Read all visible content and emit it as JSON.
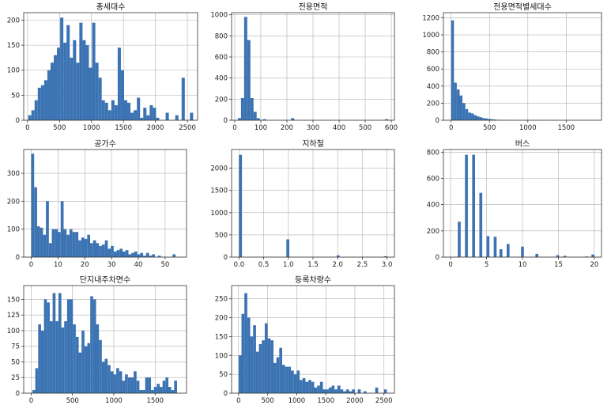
{
  "chart_data": [
    {
      "type": "bar",
      "title": "총세대수",
      "xlim": [
        -60,
        2660
      ],
      "ylim": [
        0,
        215
      ],
      "xticks": [
        0,
        500,
        1000,
        1500,
        2000,
        2500
      ],
      "yticks": [
        0,
        50,
        100,
        150,
        200
      ],
      "grid": true,
      "bins": [
        [
          10,
          60,
          10
        ],
        [
          60,
          110,
          20
        ],
        [
          110,
          160,
          40
        ],
        [
          160,
          210,
          65
        ],
        [
          210,
          260,
          70
        ],
        [
          260,
          310,
          80
        ],
        [
          310,
          360,
          100
        ],
        [
          360,
          410,
          115
        ],
        [
          410,
          460,
          130
        ],
        [
          460,
          510,
          145
        ],
        [
          510,
          560,
          205
        ],
        [
          560,
          610,
          155
        ],
        [
          610,
          660,
          190
        ],
        [
          660,
          710,
          125
        ],
        [
          710,
          760,
          160
        ],
        [
          760,
          810,
          115
        ],
        [
          810,
          860,
          195
        ],
        [
          860,
          910,
          160
        ],
        [
          910,
          960,
          150
        ],
        [
          960,
          1010,
          105
        ],
        [
          1010,
          1060,
          195
        ],
        [
          1060,
          1110,
          115
        ],
        [
          1110,
          1160,
          85
        ],
        [
          1160,
          1210,
          40
        ],
        [
          1210,
          1260,
          35
        ],
        [
          1260,
          1310,
          20
        ],
        [
          1310,
          1360,
          40
        ],
        [
          1360,
          1410,
          30
        ],
        [
          1410,
          1460,
          145
        ],
        [
          1460,
          1510,
          100
        ],
        [
          1510,
          1560,
          40
        ],
        [
          1560,
          1610,
          35
        ],
        [
          1610,
          1660,
          15
        ],
        [
          1660,
          1710,
          20
        ],
        [
          1710,
          1760,
          45
        ],
        [
          1760,
          1810,
          5
        ],
        [
          1810,
          1860,
          25
        ],
        [
          1860,
          1910,
          10
        ],
        [
          1910,
          1960,
          30
        ],
        [
          1960,
          2010,
          25
        ],
        [
          2010,
          2060,
          5
        ],
        [
          2160,
          2210,
          15
        ],
        [
          2310,
          2360,
          10
        ],
        [
          2410,
          2460,
          85
        ],
        [
          2540,
          2590,
          15
        ]
      ]
    },
    {
      "type": "bar",
      "title": "전용면적",
      "xlim": [
        -12,
        612
      ],
      "ylim": [
        0,
        1020
      ],
      "xticks": [
        0,
        100,
        200,
        300,
        400,
        500,
        600
      ],
      "yticks": [
        0,
        200,
        400,
        600,
        800,
        1000
      ],
      "grid": true,
      "bins": [
        [
          12,
          24,
          20
        ],
        [
          24,
          36,
          210
        ],
        [
          36,
          48,
          980
        ],
        [
          48,
          60,
          760
        ],
        [
          60,
          72,
          210
        ],
        [
          72,
          84,
          80
        ],
        [
          84,
          96,
          20
        ],
        [
          108,
          120,
          10
        ],
        [
          216,
          228,
          20
        ],
        [
          576,
          588,
          10
        ]
      ]
    },
    {
      "type": "bar",
      "title": "전용면적별세대수",
      "xlim": [
        -100,
        1960
      ],
      "ylim": [
        0,
        1260
      ],
      "xticks": [
        0,
        500,
        1000,
        1500
      ],
      "yticks": [
        0,
        200,
        400,
        600,
        800,
        1000,
        1200
      ],
      "grid": true,
      "bins": [
        [
          0,
          37,
          1170
        ],
        [
          37,
          74,
          440
        ],
        [
          74,
          111,
          360
        ],
        [
          111,
          148,
          290
        ],
        [
          148,
          185,
          200
        ],
        [
          185,
          222,
          130
        ],
        [
          222,
          259,
          90
        ],
        [
          259,
          296,
          80
        ],
        [
          296,
          333,
          60
        ],
        [
          333,
          370,
          45
        ],
        [
          370,
          407,
          35
        ],
        [
          407,
          444,
          25
        ],
        [
          444,
          481,
          20
        ],
        [
          481,
          518,
          15
        ],
        [
          518,
          555,
          12
        ],
        [
          555,
          592,
          8
        ],
        [
          592,
          629,
          5
        ],
        [
          629,
          666,
          4
        ],
        [
          666,
          703,
          3
        ],
        [
          703,
          740,
          2
        ],
        [
          740,
          777,
          2
        ],
        [
          777,
          814,
          1
        ]
      ]
    },
    {
      "type": "bar",
      "title": "공가수",
      "xlim": [
        -2.8,
        58
      ],
      "ylim": [
        0,
        385
      ],
      "xticks": [
        0,
        10,
        20,
        30,
        40,
        50
      ],
      "yticks": [
        0,
        100,
        200,
        300
      ],
      "grid": true,
      "bins": [
        [
          0,
          1.1,
          370
        ],
        [
          1.1,
          2.2,
          250
        ],
        [
          2.2,
          3.3,
          110
        ],
        [
          3.3,
          4.4,
          105
        ],
        [
          4.4,
          5.5,
          80
        ],
        [
          5.5,
          6.6,
          200
        ],
        [
          6.6,
          7.7,
          50
        ],
        [
          7.7,
          8.8,
          100
        ],
        [
          8.8,
          9.9,
          100
        ],
        [
          9.9,
          11,
          90
        ],
        [
          11,
          12.1,
          200
        ],
        [
          12.1,
          13.2,
          100
        ],
        [
          13.2,
          14.3,
          80
        ],
        [
          14.3,
          15.4,
          100
        ],
        [
          15.4,
          16.5,
          90
        ],
        [
          16.5,
          17.6,
          90
        ],
        [
          17.6,
          18.7,
          60
        ],
        [
          18.7,
          19.8,
          70
        ],
        [
          19.8,
          20.9,
          65
        ],
        [
          20.9,
          22,
          80
        ],
        [
          22,
          23.1,
          50
        ],
        [
          23.1,
          24.2,
          60
        ],
        [
          24.2,
          25.3,
          50
        ],
        [
          25.3,
          26.4,
          40
        ],
        [
          26.4,
          27.5,
          45
        ],
        [
          27.5,
          28.6,
          60
        ],
        [
          28.6,
          29.7,
          30
        ],
        [
          29.7,
          30.8,
          40
        ],
        [
          30.8,
          31.9,
          20
        ],
        [
          31.9,
          33,
          25
        ],
        [
          33,
          34.1,
          30
        ],
        [
          34.1,
          35.2,
          20
        ],
        [
          35.2,
          36.3,
          25
        ],
        [
          36.3,
          37.4,
          10
        ],
        [
          37.4,
          38.5,
          15
        ],
        [
          38.5,
          39.6,
          20
        ],
        [
          39.6,
          40.7,
          10
        ],
        [
          40.7,
          41.8,
          15
        ],
        [
          41.8,
          42.9,
          5
        ],
        [
          42.9,
          44,
          15
        ],
        [
          44,
          45.1,
          5
        ],
        [
          45.1,
          46.2,
          10
        ],
        [
          47.3,
          48.4,
          5
        ],
        [
          52.8,
          53.9,
          10
        ]
      ]
    },
    {
      "type": "bar",
      "title": "지하철",
      "xlim": [
        -0.15,
        3.15
      ],
      "ylim": [
        0,
        2420
      ],
      "xticks": [
        0.0,
        0.5,
        1.0,
        1.5,
        2.0,
        2.5,
        3.0
      ],
      "yticks": [
        0,
        500,
        1000,
        1500,
        2000
      ],
      "grid": true,
      "bins": [
        [
          0,
          0.06,
          2300
        ],
        [
          0.96,
          1.02,
          400
        ],
        [
          1.98,
          2.04,
          40
        ],
        [
          2.94,
          3.0,
          20
        ]
      ]
    },
    {
      "type": "bar",
      "title": "버스",
      "xlim": [
        -1,
        21
      ],
      "ylim": [
        0,
        820
      ],
      "xticks": [
        0,
        5,
        10,
        15,
        20
      ],
      "yticks": [
        0,
        200,
        400,
        600,
        800
      ],
      "grid": true,
      "bins": [
        [
          1,
          1.4,
          270
        ],
        [
          2,
          2.4,
          780
        ],
        [
          3,
          3.4,
          780
        ],
        [
          4,
          4.4,
          490
        ],
        [
          5,
          5.4,
          160
        ],
        [
          6,
          6.4,
          155
        ],
        [
          6.8,
          7.2,
          60
        ],
        [
          7.8,
          8.2,
          100
        ],
        [
          9.8,
          10.2,
          80
        ],
        [
          11.8,
          12.2,
          25
        ],
        [
          14.7,
          15.1,
          15
        ],
        [
          15.7,
          16.1,
          10
        ],
        [
          18.7,
          19.1,
          5
        ],
        [
          19.6,
          20,
          20
        ]
      ]
    },
    {
      "type": "bar",
      "title": "단지내주차면수",
      "xlim": [
        -90,
        1880
      ],
      "ylim": [
        0,
        172
      ],
      "xticks": [
        0,
        500,
        1000,
        1500
      ],
      "yticks": [
        0,
        25,
        50,
        75,
        100,
        125,
        150
      ],
      "grid": true,
      "bins": [
        [
          15,
          50,
          5
        ],
        [
          50,
          85,
          40
        ],
        [
          85,
          120,
          110
        ],
        [
          120,
          155,
          100
        ],
        [
          155,
          190,
          150
        ],
        [
          190,
          225,
          145
        ],
        [
          225,
          260,
          115
        ],
        [
          260,
          295,
          160
        ],
        [
          295,
          330,
          115
        ],
        [
          330,
          365,
          160
        ],
        [
          365,
          400,
          105
        ],
        [
          400,
          435,
          115
        ],
        [
          435,
          470,
          150
        ],
        [
          470,
          505,
          150
        ],
        [
          505,
          540,
          110
        ],
        [
          540,
          575,
          90
        ],
        [
          575,
          610,
          65
        ],
        [
          610,
          645,
          100
        ],
        [
          645,
          680,
          75
        ],
        [
          680,
          715,
          80
        ],
        [
          715,
          750,
          155
        ],
        [
          750,
          785,
          150
        ],
        [
          785,
          820,
          110
        ],
        [
          820,
          855,
          85
        ],
        [
          855,
          890,
          50
        ],
        [
          890,
          925,
          55
        ],
        [
          925,
          960,
          45
        ],
        [
          960,
          995,
          35
        ],
        [
          995,
          1030,
          30
        ],
        [
          1030,
          1065,
          40
        ],
        [
          1065,
          1100,
          35
        ],
        [
          1100,
          1135,
          20
        ],
        [
          1135,
          1170,
          30
        ],
        [
          1170,
          1205,
          25
        ],
        [
          1205,
          1240,
          25
        ],
        [
          1240,
          1275,
          35
        ],
        [
          1275,
          1310,
          20
        ],
        [
          1310,
          1345,
          5
        ],
        [
          1345,
          1380,
          5
        ],
        [
          1380,
          1415,
          25
        ],
        [
          1415,
          1450,
          25
        ],
        [
          1450,
          1485,
          5
        ],
        [
          1485,
          1520,
          10
        ],
        [
          1520,
          1555,
          15
        ],
        [
          1555,
          1590,
          10
        ],
        [
          1590,
          1625,
          20
        ],
        [
          1625,
          1660,
          25
        ],
        [
          1660,
          1695,
          10
        ],
        [
          1695,
          1730,
          5
        ],
        [
          1730,
          1765,
          20
        ]
      ]
    },
    {
      "type": "bar",
      "title": "등록차량수",
      "xlim": [
        -120,
        2680
      ],
      "ylim": [
        0,
        285
      ],
      "xticks": [
        0,
        500,
        1000,
        1500,
        2000,
        2500
      ],
      "yticks": [
        0,
        50,
        100,
        150,
        200,
        250
      ],
      "grid": true,
      "bins": [
        [
          0,
          50,
          100
        ],
        [
          50,
          100,
          210
        ],
        [
          100,
          150,
          265
        ],
        [
          150,
          200,
          200
        ],
        [
          200,
          250,
          150
        ],
        [
          250,
          300,
          180
        ],
        [
          300,
          350,
          110
        ],
        [
          350,
          400,
          130
        ],
        [
          400,
          450,
          140
        ],
        [
          450,
          500,
          185
        ],
        [
          500,
          550,
          145
        ],
        [
          550,
          600,
          140
        ],
        [
          600,
          650,
          80
        ],
        [
          650,
          700,
          95
        ],
        [
          700,
          750,
          120
        ],
        [
          750,
          800,
          75
        ],
        [
          800,
          850,
          70
        ],
        [
          850,
          900,
          70
        ],
        [
          900,
          950,
          60
        ],
        [
          950,
          1000,
          50
        ],
        [
          1000,
          1050,
          60
        ],
        [
          1050,
          1100,
          35
        ],
        [
          1100,
          1150,
          40
        ],
        [
          1150,
          1200,
          30
        ],
        [
          1200,
          1250,
          35
        ],
        [
          1250,
          1300,
          30
        ],
        [
          1300,
          1350,
          15
        ],
        [
          1350,
          1400,
          20
        ],
        [
          1400,
          1450,
          30
        ],
        [
          1450,
          1500,
          10
        ],
        [
          1500,
          1550,
          10
        ],
        [
          1550,
          1600,
          15
        ],
        [
          1600,
          1650,
          20
        ],
        [
          1650,
          1700,
          10
        ],
        [
          1700,
          1750,
          20
        ],
        [
          1750,
          1800,
          10
        ],
        [
          1800,
          1850,
          5
        ],
        [
          1850,
          1900,
          10
        ],
        [
          1900,
          1950,
          5
        ],
        [
          1950,
          2000,
          10
        ],
        [
          2050,
          2100,
          10
        ],
        [
          2150,
          2200,
          5
        ],
        [
          2350,
          2400,
          15
        ],
        [
          2500,
          2550,
          10
        ]
      ]
    }
  ]
}
